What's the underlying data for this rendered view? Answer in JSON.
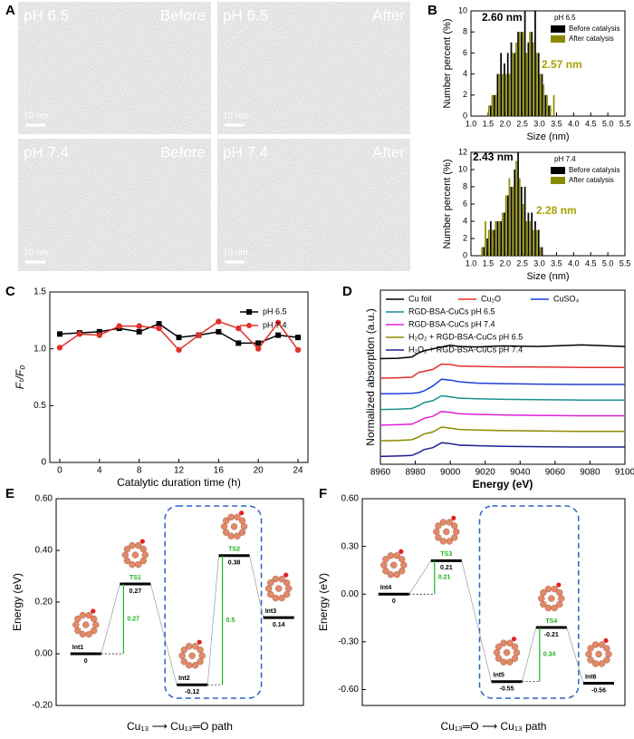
{
  "figure": {
    "panel_labels": [
      "A",
      "B",
      "C",
      "D",
      "E",
      "F"
    ],
    "micrographs": [
      {
        "condition": "pH 6.5",
        "state": "Before",
        "scale_bar": "10 nm"
      },
      {
        "condition": "pH 6.5",
        "state": "After",
        "scale_bar": "10 nm"
      },
      {
        "condition": "pH 7.4",
        "state": "Before",
        "scale_bar": "10 nm"
      },
      {
        "condition": "pH 7.4",
        "state": "After",
        "scale_bar": "10 nm"
      }
    ]
  },
  "chart_data": [
    {
      "type": "bar",
      "xlabel": "Size (nm)",
      "ylabel": "Number percent (%)",
      "legend_title": "pH 6.5",
      "x": [
        1.5,
        1.6,
        1.7,
        1.8,
        1.9,
        2.0,
        2.1,
        2.2,
        2.3,
        2.4,
        2.5,
        2.6,
        2.7,
        2.8,
        2.9,
        3.0,
        3.1,
        3.2,
        3.3,
        3.4
      ],
      "series": [
        {
          "name": "Before catalysis",
          "color": "#000000",
          "values": [
            null,
            1,
            2,
            4,
            6,
            5,
            6,
            7,
            6,
            8,
            8,
            10,
            7,
            8,
            10,
            6,
            4,
            2,
            1,
            null
          ]
        },
        {
          "name": "After catalysis",
          "color": "#8b8b00",
          "values": [
            1,
            2,
            2,
            4,
            4,
            4,
            4,
            6,
            7,
            8,
            8,
            6,
            8,
            7,
            6,
            4,
            3,
            2,
            1,
            2
          ]
        }
      ],
      "xlim": [
        1.0,
        5.5
      ],
      "xticks": [
        {
          "value": 1,
          "label": "1.0"
        },
        1.5,
        {
          "value": 2,
          "label": "2.0"
        },
        2.5,
        {
          "value": 3,
          "label": "3.0"
        },
        3.5,
        {
          "value": 4,
          "label": "4.0"
        },
        4.5,
        {
          "value": 5,
          "label": "5.0"
        },
        5.5
      ],
      "ylim": [
        0,
        10
      ],
      "yticks": [
        0,
        2,
        4,
        6,
        8,
        10
      ],
      "annotations": [
        {
          "text": "2.60 nm",
          "color": "#000000"
        },
        {
          "text": "2.57 nm",
          "color": "#a8a000"
        }
      ]
    },
    {
      "type": "bar",
      "xlabel": "Size (nm)",
      "ylabel": "Number percent (%)",
      "legend_title": "pH 7.4",
      "x": [
        1.3,
        1.4,
        1.5,
        1.6,
        1.7,
        1.8,
        1.9,
        2.0,
        2.1,
        2.2,
        2.3,
        2.4,
        2.5,
        2.6,
        2.7,
        2.8,
        2.9,
        3.0,
        3.1
      ],
      "series": [
        {
          "name": "Before catalysis",
          "color": "#000000",
          "values": [
            null,
            1,
            2,
            4,
            3,
            4,
            4,
            5,
            7,
            8,
            10,
            12,
            8,
            8,
            5,
            5,
            4,
            3,
            1
          ]
        },
        {
          "name": "After catalysis",
          "color": "#8b8b00",
          "values": [
            1,
            4,
            3,
            3,
            4,
            4,
            5,
            7,
            9,
            8,
            11,
            9,
            6,
            4,
            4,
            3,
            3,
            1,
            null
          ]
        }
      ],
      "xlim": [
        1.0,
        5.5
      ],
      "xticks": [
        {
          "value": 1,
          "label": "1.0"
        },
        1.5,
        {
          "value": 2,
          "label": "2.0"
        },
        2.5,
        {
          "value": 3,
          "label": "3.0"
        },
        3.5,
        {
          "value": 4,
          "label": "4.0"
        },
        4.5,
        {
          "value": 5,
          "label": "5.0"
        },
        5.5
      ],
      "ylim": [
        0,
        12
      ],
      "yticks": [
        0,
        2,
        4,
        6,
        8,
        10,
        12
      ],
      "annotations": [
        {
          "text": "2.43 nm",
          "color": "#000000"
        },
        {
          "text": "2.28 nm",
          "color": "#a8a000"
        }
      ]
    },
    {
      "type": "line",
      "xlabel": "Catalytic duration time (h)",
      "ylabel": "Fₜ/F₀",
      "legend": "upper right",
      "x": [
        0,
        2,
        4,
        6,
        8,
        10,
        12,
        14,
        16,
        18,
        20,
        22,
        24
      ],
      "series": [
        {
          "name": "pH 6.5",
          "color": "#000000",
          "marker": "square",
          "values": [
            1.13,
            1.14,
            1.15,
            1.18,
            1.15,
            1.22,
            1.1,
            1.12,
            1.15,
            1.05,
            1.05,
            1.12,
            1.1
          ]
        },
        {
          "name": "pH 7.4",
          "color": "#e0302a",
          "marker": "circle",
          "values": [
            1.01,
            1.13,
            1.12,
            1.2,
            1.2,
            1.18,
            0.99,
            1.12,
            1.24,
            1.18,
            1.0,
            1.23,
            0.99
          ]
        }
      ],
      "xlim": [
        -1,
        25
      ],
      "xticks": [
        0,
        4,
        8,
        12,
        16,
        20,
        24
      ],
      "ylim": [
        0,
        1.5
      ],
      "yticks": [
        0,
        0.5,
        {
          "value": 1,
          "label": "1.0"
        },
        1.5
      ]
    },
    {
      "type": "line",
      "xlabel": "Energy (eV)",
      "ylabel": "Normalized absorption (a.u.)",
      "legend": "upper left",
      "x": [
        8960,
        8970,
        8978,
        8982,
        8985,
        8990,
        8995,
        9000,
        9005,
        9015,
        9030,
        9050,
        9075,
        9100
      ],
      "series": [
        {
          "name": "Cu foil",
          "color": "#000000",
          "values": [
            6.0,
            6.02,
            6.08,
            6.3,
            6.4,
            6.5,
            6.6,
            6.68,
            6.62,
            6.6,
            6.65,
            6.62,
            6.7,
            6.62
          ]
        },
        {
          "name": "Cu₂O",
          "color": "#e0302a",
          "values": [
            5.0,
            5.02,
            5.05,
            5.3,
            5.35,
            5.45,
            5.72,
            5.7,
            5.62,
            5.6,
            5.58,
            5.57,
            5.55,
            5.55
          ]
        },
        {
          "name": "CuSO₄",
          "color": "#1f3fd8",
          "values": [
            4.2,
            4.21,
            4.23,
            4.26,
            4.35,
            4.6,
            4.95,
            4.9,
            4.82,
            4.75,
            4.72,
            4.7,
            4.68,
            4.68
          ]
        },
        {
          "name": "RGD-BSA-CuCs pH 6.5",
          "color": "#1a8f8f",
          "values": [
            3.4,
            3.42,
            3.45,
            3.6,
            3.75,
            3.85,
            4.1,
            4.05,
            3.98,
            3.95,
            3.92,
            3.9,
            3.88,
            3.88
          ]
        },
        {
          "name": "RGD-BSA-CuCs pH 7.4",
          "color": "#e020d8",
          "values": [
            2.6,
            2.62,
            2.65,
            2.8,
            2.95,
            3.05,
            3.3,
            3.25,
            3.18,
            3.15,
            3.12,
            3.1,
            3.08,
            3.08
          ]
        },
        {
          "name": "H₂O₂ + RGD-BSA-CuCs pH 6.5",
          "color": "#8b8b00",
          "values": [
            1.8,
            1.82,
            1.85,
            2.0,
            2.15,
            2.25,
            2.5,
            2.45,
            2.38,
            2.35,
            2.32,
            2.3,
            2.28,
            2.28
          ]
        },
        {
          "name": "H₂O₂ + RGD-BSA-CuCs pH 7.4",
          "color": "#20208f",
          "values": [
            1.0,
            1.02,
            1.05,
            1.2,
            1.35,
            1.45,
            1.7,
            1.65,
            1.58,
            1.55,
            1.52,
            1.5,
            1.48,
            1.48
          ]
        }
      ],
      "xlim": [
        8960,
        9100
      ],
      "xticks": [
        8960,
        8980,
        9000,
        9020,
        9040,
        9060,
        9080,
        9100
      ],
      "ylim": [
        0.6,
        9.5
      ]
    },
    {
      "type": "energy",
      "xlabel": "Cu₁₃ ⟶ Cu₁₃═O path",
      "ylabel": "Energy (eV)",
      "levels": [
        {
          "name": "Int1",
          "value": 0
        },
        {
          "name": "TS1",
          "value": 0.27,
          "barrier": 0.27
        },
        {
          "name": "Int2",
          "value": -0.12
        },
        {
          "name": "TS2",
          "value": 0.38,
          "barrier": 0.5
        },
        {
          "name": "Int3",
          "value": 0.14
        }
      ],
      "ylim": [
        -0.2,
        0.6
      ],
      "yticks": [
        {
          "value": -0.2,
          "label": "-0.20"
        },
        {
          "value": 0,
          "label": "0.00"
        },
        {
          "value": 0.2,
          "label": "0.20"
        },
        {
          "value": 0.4,
          "label": "0.40"
        },
        {
          "value": 0.6,
          "label": "0.60"
        }
      ]
    },
    {
      "type": "energy",
      "xlabel": "Cu₁₃═O ⟶ Cu₁₃ path",
      "ylabel": "Energy (eV)",
      "levels": [
        {
          "name": "Int4",
          "value": 0
        },
        {
          "name": "TS3",
          "value": 0.21,
          "barrier": 0.21
        },
        {
          "name": "Int5",
          "value": -0.55
        },
        {
          "name": "TS4",
          "value": -0.21,
          "barrier": 0.34
        },
        {
          "name": "Int6",
          "value": -0.56
        }
      ],
      "ylim": [
        -0.7,
        0.6
      ],
      "yticks": [
        {
          "value": -0.6,
          "label": "-0.60"
        },
        {
          "value": -0.3,
          "label": "-0.30"
        },
        {
          "value": 0,
          "label": "0.00"
        },
        {
          "value": 0.3,
          "label": "0.30"
        },
        {
          "value": 0.6,
          "label": "0.60"
        }
      ]
    }
  ]
}
